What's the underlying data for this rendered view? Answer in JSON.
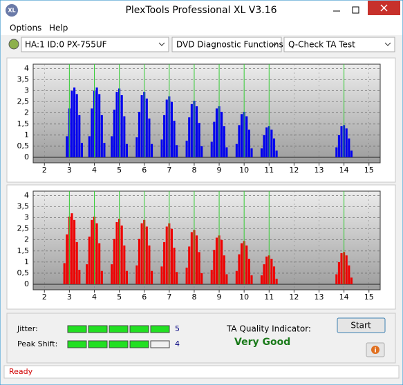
{
  "window": {
    "title": "PlexTools Professional XL V3.16",
    "app_icon": "XL"
  },
  "menu": [
    "Options",
    "Help"
  ],
  "toolbar": {
    "drive": "HA:1 ID:0  PX-755UF",
    "function": "DVD Diagnostic Functions",
    "test": "Q-Check TA Test"
  },
  "charts": [
    {
      "type": "bar",
      "color": "#0000ee",
      "marker_color": "#33cc33",
      "grid": true,
      "xlim": [
        1.55,
        15.45
      ],
      "ylim": [
        -0.25,
        4.2
      ],
      "xticks": [
        2,
        3,
        4,
        5,
        6,
        7,
        8,
        9,
        10,
        11,
        12,
        13,
        14,
        15
      ],
      "yticks": [
        0,
        {
          "value": 0.5,
          "label": "0,5"
        },
        1,
        {
          "value": 1.5,
          "label": "1,5"
        },
        2,
        {
          "value": 2.5,
          "label": "2,5"
        },
        3,
        {
          "value": 3.5,
          "label": "3,5"
        },
        4
      ],
      "markers": [
        3,
        4,
        5,
        6,
        7,
        8,
        9,
        10,
        11,
        14
      ],
      "x": [
        2.9,
        3.0,
        3.1,
        3.2,
        3.3,
        3.4,
        3.5,
        3.8,
        3.9,
        4.0,
        4.1,
        4.2,
        4.3,
        4.4,
        4.7,
        4.8,
        4.9,
        5.0,
        5.1,
        5.2,
        5.3,
        5.7,
        5.8,
        5.9,
        6.0,
        6.1,
        6.2,
        6.3,
        6.7,
        6.8,
        6.9,
        7.0,
        7.1,
        7.2,
        7.3,
        7.7,
        7.8,
        7.9,
        8.0,
        8.1,
        8.2,
        8.3,
        8.7,
        8.8,
        8.9,
        9.0,
        9.1,
        9.2,
        9.3,
        9.7,
        9.8,
        9.9,
        10.0,
        10.1,
        10.2,
        10.3,
        10.7,
        10.8,
        10.9,
        11.0,
        11.1,
        11.2,
        11.3,
        13.7,
        13.8,
        13.9,
        14.0,
        14.1,
        14.2,
        14.3
      ],
      "values": [
        0.95,
        2.2,
        3.0,
        3.15,
        2.85,
        1.9,
        0.65,
        0.95,
        2.2,
        3.0,
        3.15,
        2.85,
        1.9,
        0.65,
        0.95,
        2.15,
        2.95,
        3.1,
        2.8,
        1.85,
        0.6,
        0.9,
        2.05,
        2.8,
        2.95,
        2.65,
        1.75,
        0.6,
        0.8,
        1.9,
        2.6,
        2.75,
        2.5,
        1.65,
        0.55,
        0.75,
        1.8,
        2.4,
        2.55,
        2.3,
        1.55,
        0.5,
        0.7,
        1.6,
        2.2,
        2.3,
        2.05,
        1.4,
        0.45,
        0.6,
        1.45,
        1.95,
        2.05,
        1.85,
        1.25,
        0.4,
        0.4,
        1.0,
        1.35,
        1.4,
        1.25,
        0.85,
        0.3,
        0.45,
        1.0,
        1.4,
        1.45,
        1.3,
        0.85,
        0.3
      ]
    },
    {
      "type": "bar",
      "color": "#ee0000",
      "marker_color": "#33cc33",
      "grid": true,
      "xlim": [
        1.55,
        15.45
      ],
      "ylim": [
        -0.25,
        4.2
      ],
      "xticks": [
        2,
        3,
        4,
        5,
        6,
        7,
        8,
        9,
        10,
        11,
        12,
        13,
        14,
        15
      ],
      "yticks": [
        0,
        {
          "value": 0.5,
          "label": "0,5"
        },
        1,
        {
          "value": 1.5,
          "label": "1,5"
        },
        2,
        {
          "value": 2.5,
          "label": "2,5"
        },
        3,
        {
          "value": 3.5,
          "label": "3,5"
        },
        4
      ],
      "markers": [
        3,
        4,
        5,
        6,
        7,
        8,
        9,
        10,
        11,
        14
      ],
      "x": [
        2.8,
        2.9,
        3.0,
        3.1,
        3.2,
        3.3,
        3.4,
        3.7,
        3.8,
        3.9,
        4.0,
        4.1,
        4.2,
        4.3,
        4.7,
        4.8,
        4.9,
        5.0,
        5.1,
        5.2,
        5.3,
        5.7,
        5.8,
        5.9,
        6.0,
        6.1,
        6.2,
        6.3,
        6.7,
        6.8,
        6.9,
        7.0,
        7.1,
        7.2,
        7.3,
        7.7,
        7.8,
        7.9,
        8.0,
        8.1,
        8.2,
        8.3,
        8.7,
        8.8,
        8.9,
        9.0,
        9.1,
        9.2,
        9.3,
        9.7,
        9.8,
        9.9,
        10.0,
        10.1,
        10.2,
        10.3,
        10.7,
        10.8,
        10.9,
        11.0,
        11.1,
        11.2,
        11.3,
        13.7,
        13.8,
        13.9,
        14.0,
        14.1,
        14.2,
        14.3
      ],
      "values": [
        0.95,
        2.25,
        3.05,
        3.2,
        2.9,
        1.9,
        0.65,
        0.9,
        2.15,
        2.9,
        3.05,
        2.75,
        1.85,
        0.6,
        0.9,
        2.05,
        2.8,
        2.95,
        2.65,
        1.75,
        0.6,
        0.85,
        2.05,
        2.75,
        2.9,
        2.6,
        1.75,
        0.6,
        0.8,
        1.9,
        2.6,
        2.75,
        2.5,
        1.65,
        0.55,
        0.75,
        1.7,
        2.35,
        2.45,
        2.2,
        1.45,
        0.5,
        0.65,
        1.55,
        2.1,
        2.2,
        2.0,
        1.3,
        0.45,
        0.6,
        1.35,
        1.85,
        1.95,
        1.75,
        1.15,
        0.4,
        0.4,
        0.9,
        1.25,
        1.3,
        1.15,
        0.8,
        0.25,
        0.45,
        1.0,
        1.4,
        1.45,
        1.3,
        0.85,
        0.3
      ]
    }
  ],
  "results": {
    "jitter": {
      "label": "Jitter:",
      "value": 5,
      "max": 5
    },
    "peak_shift": {
      "label": "Peak Shift:",
      "value": 4,
      "max": 5
    },
    "quality_label": "TA Quality Indicator:",
    "quality": "Very Good",
    "start": "Start",
    "info": "i"
  },
  "status": "Ready"
}
